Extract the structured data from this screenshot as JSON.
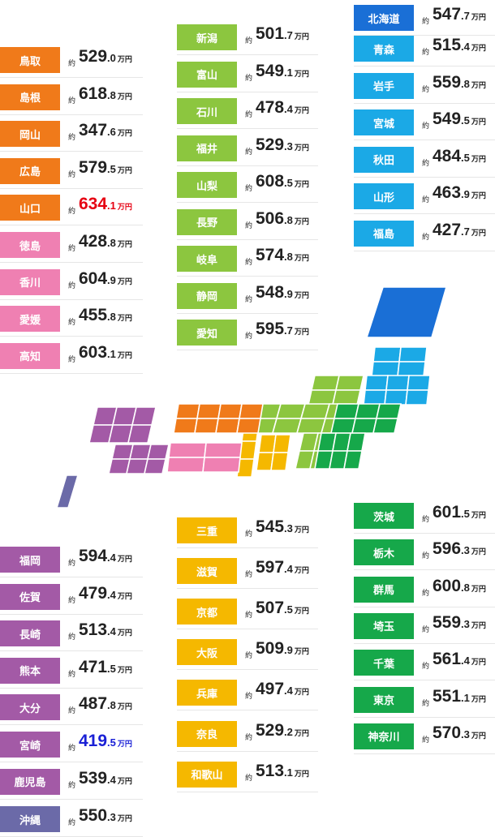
{
  "chart_data": {
    "type": "table",
    "prefix_label": "約",
    "unit_label": "万円",
    "regions": [
      {
        "key": "chugoku_shikoku",
        "color": "#f07a1a",
        "items": [
          {
            "name": "鳥取",
            "int": "529",
            "dec": ".0"
          },
          {
            "name": "島根",
            "int": "618",
            "dec": ".8"
          },
          {
            "name": "岡山",
            "int": "347",
            "dec": ".6"
          },
          {
            "name": "広島",
            "int": "579",
            "dec": ".5"
          },
          {
            "name": "山口",
            "int": "634",
            "dec": ".1",
            "highlight": "max"
          }
        ]
      },
      {
        "key": "shikoku",
        "color": "#ef80b2",
        "items": [
          {
            "name": "徳島",
            "int": "428",
            "dec": ".8"
          },
          {
            "name": "香川",
            "int": "604",
            "dec": ".9"
          },
          {
            "name": "愛媛",
            "int": "455",
            "dec": ".8"
          },
          {
            "name": "高知",
            "int": "603",
            "dec": ".1"
          }
        ]
      },
      {
        "key": "chubu",
        "color": "#8cc63f",
        "items": [
          {
            "name": "新潟",
            "int": "501",
            "dec": ".7"
          },
          {
            "name": "富山",
            "int": "549",
            "dec": ".1"
          },
          {
            "name": "石川",
            "int": "478",
            "dec": ".4"
          },
          {
            "name": "福井",
            "int": "529",
            "dec": ".3"
          },
          {
            "name": "山梨",
            "int": "608",
            "dec": ".5"
          },
          {
            "name": "長野",
            "int": "506",
            "dec": ".8"
          },
          {
            "name": "岐阜",
            "int": "574",
            "dec": ".8"
          },
          {
            "name": "静岡",
            "int": "548",
            "dec": ".9"
          },
          {
            "name": "愛知",
            "int": "595",
            "dec": ".7"
          }
        ]
      },
      {
        "key": "hokkaido",
        "color": "#1a6fd6",
        "items": [
          {
            "name": "北海道",
            "int": "547",
            "dec": ".7"
          }
        ]
      },
      {
        "key": "tohoku",
        "color": "#1ba9e6",
        "items": [
          {
            "name": "青森",
            "int": "515",
            "dec": ".4"
          },
          {
            "name": "岩手",
            "int": "559",
            "dec": ".8"
          },
          {
            "name": "宮城",
            "int": "549",
            "dec": ".5"
          },
          {
            "name": "秋田",
            "int": "484",
            "dec": ".5"
          },
          {
            "name": "山形",
            "int": "463",
            "dec": ".9"
          },
          {
            "name": "福島",
            "int": "427",
            "dec": ".7"
          }
        ]
      },
      {
        "key": "kyushu",
        "color": "#a35aa6",
        "items": [
          {
            "name": "福岡",
            "int": "594",
            "dec": ".4"
          },
          {
            "name": "佐賀",
            "int": "479",
            "dec": ".4"
          },
          {
            "name": "長崎",
            "int": "513",
            "dec": ".4"
          },
          {
            "name": "熊本",
            "int": "471",
            "dec": ".5"
          },
          {
            "name": "大分",
            "int": "487",
            "dec": ".8"
          },
          {
            "name": "宮崎",
            "int": "419",
            "dec": ".5",
            "highlight": "min"
          },
          {
            "name": "鹿児島",
            "int": "539",
            "dec": ".4"
          }
        ]
      },
      {
        "key": "okinawa",
        "color": "#6b6aa8",
        "items": [
          {
            "name": "沖縄",
            "int": "550",
            "dec": ".3"
          }
        ]
      },
      {
        "key": "kinki",
        "color": "#f5b800",
        "items": [
          {
            "name": "三重",
            "int": "545",
            "dec": ".3"
          },
          {
            "name": "滋賀",
            "int": "597",
            "dec": ".4"
          },
          {
            "name": "京都",
            "int": "507",
            "dec": ".5"
          },
          {
            "name": "大阪",
            "int": "509",
            "dec": ".9"
          },
          {
            "name": "兵庫",
            "int": "497",
            "dec": ".4"
          },
          {
            "name": "奈良",
            "int": "529",
            "dec": ".2"
          },
          {
            "name": "和歌山",
            "int": "513",
            "dec": ".1"
          }
        ]
      },
      {
        "key": "kanto",
        "color": "#16a84a",
        "items": [
          {
            "name": "茨城",
            "int": "601",
            "dec": ".5"
          },
          {
            "name": "栃木",
            "int": "596",
            "dec": ".3"
          },
          {
            "name": "群馬",
            "int": "600",
            "dec": ".8"
          },
          {
            "name": "埼玉",
            "int": "559",
            "dec": ".3"
          },
          {
            "name": "千葉",
            "int": "561",
            "dec": ".4"
          },
          {
            "name": "東京",
            "int": "551",
            "dec": ".1"
          },
          {
            "name": "神奈川",
            "int": "570",
            "dec": ".3"
          }
        ]
      }
    ]
  }
}
